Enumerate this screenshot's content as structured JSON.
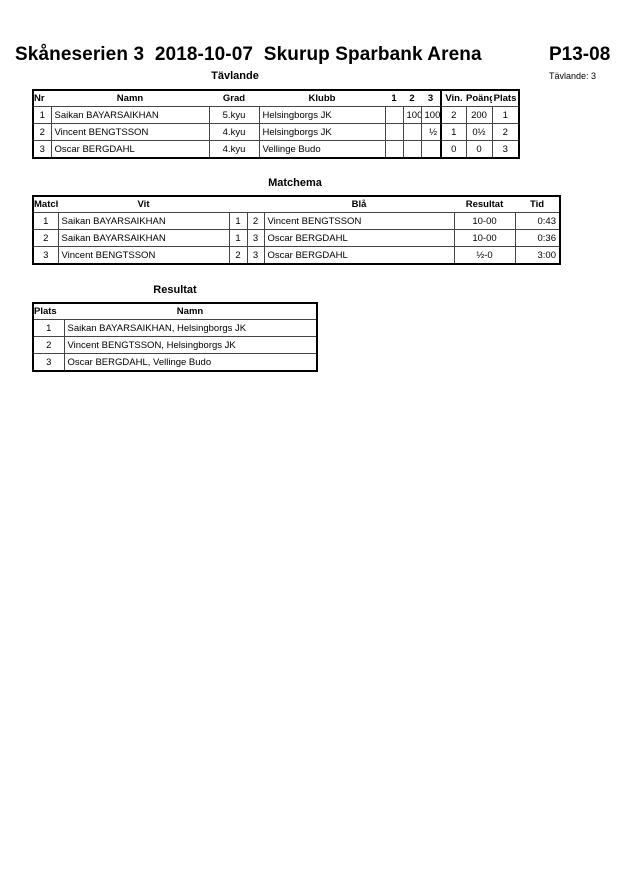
{
  "header": {
    "title": "Skåneserien 3  2018-10-07  Skurup Sparbank Arena",
    "code": "P13-08",
    "competitors_count": "Tävlande: 3"
  },
  "competitors": {
    "title": "Tävlande",
    "columns": [
      "Nr",
      "Namn",
      "Grad",
      "Klubb",
      "1",
      "2",
      "3",
      "Vin.",
      "Poäng",
      "Plats"
    ],
    "rows": [
      [
        "1",
        "Saikan BAYARSAIKHAN",
        "5.kyu",
        "Helsingborgs JK",
        "",
        "100",
        "100",
        "2",
        "200",
        "1"
      ],
      [
        "2",
        "Vincent BENGTSSON",
        "4.kyu",
        "Helsingborgs JK",
        "",
        "",
        "½",
        "1",
        "0½",
        "2"
      ],
      [
        "3",
        "Oscar BERGDAHL",
        "4.kyu",
        "Vellinge Budo",
        "",
        "",
        "",
        "0",
        "0",
        "3"
      ]
    ]
  },
  "matches": {
    "title": "Matchema",
    "columns": [
      "Match",
      "Vit",
      "",
      "",
      "Blå",
      "Resultat",
      "Tid"
    ],
    "rows": [
      [
        "1",
        "Saikan BAYARSAIKHAN",
        "1",
        "2",
        "Vincent BENGTSSON",
        "10-00",
        "0:43"
      ],
      [
        "2",
        "Saikan BAYARSAIKHAN",
        "1",
        "3",
        "Oscar BERGDAHL",
        "10-00",
        "0:36"
      ],
      [
        "3",
        "Vincent BENGTSSON",
        "2",
        "3",
        "Oscar BERGDAHL",
        "½-0",
        "3:00"
      ]
    ]
  },
  "results": {
    "title": "Resultat",
    "columns": [
      "Plats",
      "Namn"
    ],
    "rows": [
      [
        "1",
        "Saikan BAYARSAIKHAN, Helsingborgs JK"
      ],
      [
        "2",
        "Vincent BENGTSSON, Helsingborgs JK"
      ],
      [
        "3",
        "Oscar BERGDAHL, Vellinge Budo"
      ]
    ]
  }
}
